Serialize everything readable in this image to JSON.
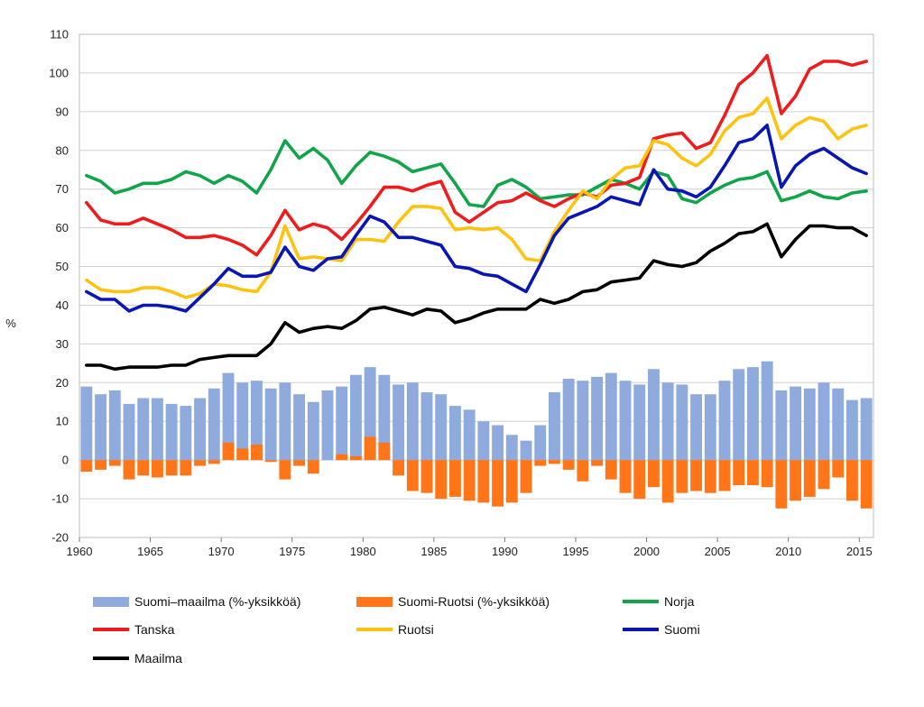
{
  "chart_data": {
    "type": "bar+line",
    "ylabel": "%",
    "ylim": [
      -20,
      110
    ],
    "yticks": [
      -20,
      -10,
      0,
      10,
      20,
      30,
      40,
      50,
      60,
      70,
      80,
      90,
      100,
      110
    ],
    "xticks": [
      1960,
      1965,
      1970,
      1975,
      1980,
      1985,
      1990,
      1995,
      2000,
      2005,
      2010,
      2015
    ],
    "grid": "horizontal",
    "legend_position": "bottom",
    "years": [
      1960,
      1961,
      1962,
      1963,
      1964,
      1965,
      1966,
      1967,
      1968,
      1969,
      1970,
      1971,
      1972,
      1973,
      1974,
      1975,
      1976,
      1977,
      1978,
      1979,
      1980,
      1981,
      1982,
      1983,
      1984,
      1985,
      1986,
      1987,
      1988,
      1989,
      1990,
      1991,
      1992,
      1993,
      1994,
      1995,
      1996,
      1997,
      1998,
      1999,
      2000,
      2001,
      2002,
      2003,
      2004,
      2005,
      2006,
      2007,
      2008,
      2009,
      2010,
      2011,
      2012,
      2013,
      2014,
      2015
    ],
    "bar_series": [
      {
        "name": "Suomi–maailma (%-yksikköä)",
        "color": "#8faadc",
        "values": [
          19,
          17,
          18,
          14.5,
          16,
          16,
          14.5,
          14,
          16,
          18.5,
          22.5,
          20,
          20.5,
          18.5,
          20,
          17,
          15,
          18,
          19,
          22,
          24,
          22,
          19.5,
          20,
          17.5,
          17,
          14,
          13,
          10,
          9,
          6.5,
          5,
          9,
          17.5,
          21,
          20.5,
          21.5,
          22.5,
          20.5,
          19.5,
          23.5,
          20,
          19.5,
          17,
          17,
          20.5,
          23.5,
          24,
          25.5,
          18,
          19,
          18.5,
          20,
          18.5,
          15.5,
          16
        ]
      },
      {
        "name": "Suomi-Ruotsi (%-yksikköä)",
        "color": "#ff7518",
        "values": [
          -3,
          -2.5,
          -1.5,
          -5,
          -4,
          -4.5,
          -4,
          -4,
          -1.5,
          -1,
          4.5,
          3,
          4,
          -0.5,
          -5,
          -1.5,
          -3.5,
          0,
          1.5,
          1,
          6,
          4.5,
          -4,
          -8,
          -8.5,
          -10,
          -9.5,
          -10.5,
          -11,
          -12,
          -11,
          -8.5,
          -1.5,
          -1,
          -2.5,
          -5.5,
          -1.5,
          -5,
          -8.5,
          -10,
          -7,
          -11,
          -8.5,
          -8,
          -8.5,
          -8,
          -6.5,
          -6.5,
          -7,
          -12.5,
          -10.5,
          -9.5,
          -7.5,
          -4.5,
          -10.5,
          -12.5
        ]
      }
    ],
    "line_series": [
      {
        "name": "Norja",
        "color": "#10a54a",
        "values": [
          73.5,
          72,
          69,
          70,
          71.5,
          71.5,
          72.5,
          74.5,
          73.5,
          71.5,
          73.5,
          72,
          69,
          75,
          82.5,
          78,
          80.5,
          77.5,
          71.5,
          76,
          79.5,
          78.5,
          77,
          74.5,
          75.5,
          76.5,
          71.5,
          66,
          65.5,
          71,
          72.5,
          70.5,
          67.5,
          68,
          68.5,
          68.5,
          70.5,
          72.5,
          71.5,
          70,
          74.5,
          73.5,
          67.5,
          66.5,
          69,
          71,
          72.5,
          73,
          74.5,
          67,
          68,
          69.5,
          68,
          67.5,
          69,
          69.5
        ]
      },
      {
        "name": "Tanska",
        "color": "#ee1c1c",
        "values": [
          66.5,
          62,
          61,
          61,
          62.5,
          61,
          59.5,
          57.5,
          57.5,
          58,
          57,
          55.5,
          53,
          58,
          64.5,
          59.5,
          61,
          60,
          57,
          61,
          65.5,
          70.5,
          70.5,
          69.5,
          71,
          72,
          64,
          61.5,
          64,
          66.5,
          67,
          69,
          67,
          65.5,
          67.5,
          69,
          68,
          71,
          71.5,
          73,
          83,
          84,
          84.5,
          80.5,
          82,
          89,
          97,
          100,
          104.5,
          89.5,
          94,
          101,
          103,
          103,
          102,
          103
        ]
      },
      {
        "name": "Ruotsi",
        "color": "#ffc20e",
        "values": [
          46.5,
          44,
          43.5,
          43.5,
          44.5,
          44.5,
          43.5,
          42,
          43,
          45.5,
          45,
          44,
          43.5,
          48.5,
          60.5,
          52,
          52.5,
          52,
          51.5,
          57,
          57,
          56.5,
          61.5,
          65.5,
          65.5,
          65,
          59.5,
          60,
          59.5,
          60,
          57,
          52,
          51.5,
          59,
          64.5,
          69.5,
          67.5,
          72.5,
          75.5,
          76,
          82.5,
          81.5,
          78,
          76,
          79,
          85,
          88.5,
          89.5,
          93.5,
          83,
          86.5,
          88.5,
          87.5,
          83,
          85.5,
          86.5
        ]
      },
      {
        "name": "Suomi",
        "color": "#0a16b4",
        "values": [
          43.5,
          41.5,
          41.5,
          38.5,
          40,
          40,
          39.5,
          38.5,
          42,
          45.5,
          49.5,
          47.5,
          47.5,
          48.5,
          55,
          50,
          49,
          52,
          52.5,
          58,
          63,
          61.5,
          57.5,
          57.5,
          56.5,
          55.5,
          50,
          49.5,
          48,
          47.5,
          45.5,
          43.5,
          50.5,
          58,
          62.5,
          64,
          65.5,
          68,
          67,
          66,
          75,
          70,
          69.5,
          68,
          70.5,
          76,
          82,
          83,
          86.5,
          70.5,
          76,
          79,
          80.5,
          78,
          75.5,
          74
        ]
      },
      {
        "name": "Maailma",
        "color": "#000000",
        "values": [
          24.5,
          24.5,
          23.5,
          24,
          24,
          24,
          24.5,
          24.5,
          26,
          26.5,
          27,
          27,
          27,
          30,
          35.5,
          33,
          34,
          34.5,
          34,
          36,
          39,
          39.5,
          38.5,
          37.5,
          39,
          38.5,
          35.5,
          36.5,
          38,
          39,
          39,
          39,
          41.5,
          40.5,
          41.5,
          43.5,
          44,
          46,
          46.5,
          47,
          51.5,
          50.5,
          50,
          51,
          54,
          56,
          58.5,
          59,
          61,
          52.5,
          57,
          60.5,
          60.5,
          60,
          60,
          58
        ]
      }
    ],
    "legend": {
      "row1": [
        "Suomi–maailma (%-yksikköä)",
        "Suomi-Ruotsi (%-yksikköä)",
        "Norja"
      ],
      "row2": [
        "Tanska",
        "Ruotsi",
        "Suomi"
      ],
      "row3": [
        "Maailma"
      ]
    }
  }
}
